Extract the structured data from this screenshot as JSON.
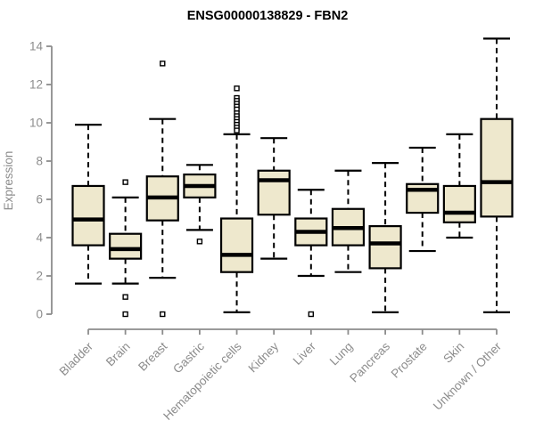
{
  "chart_data": {
    "type": "boxplot",
    "title": "ENSG00000138829 - FBN2",
    "ylabel": "Expression",
    "xlabel": "",
    "ylim": [
      0,
      14
    ],
    "yticks": [
      0,
      2,
      4,
      6,
      8,
      10,
      12,
      14
    ],
    "grid": false,
    "legend": "none",
    "categories": [
      "Bladder",
      "Brain",
      "Breast",
      "Gastric",
      "Hematopoietic cells",
      "Kidney",
      "Liver",
      "Lung",
      "Pancreas",
      "Prostate",
      "Skin",
      "Unknown / Other"
    ],
    "series": [
      {
        "name": "Bladder",
        "low": 1.6,
        "q1": 3.6,
        "median": 4.95,
        "q3": 6.7,
        "high": 9.9,
        "outliers": []
      },
      {
        "name": "Brain",
        "low": 1.6,
        "q1": 2.9,
        "median": 3.4,
        "q3": 4.2,
        "high": 6.1,
        "outliers": [
          6.9,
          0.9,
          0
        ]
      },
      {
        "name": "Breast",
        "low": 1.9,
        "q1": 4.9,
        "median": 6.1,
        "q3": 7.2,
        "high": 10.2,
        "outliers": [
          13.1,
          0
        ]
      },
      {
        "name": "Gastric",
        "low": 4.4,
        "q1": 6.1,
        "median": 6.7,
        "q3": 7.3,
        "high": 7.8,
        "outliers": [
          3.8
        ]
      },
      {
        "name": "Hematopoietic cells",
        "low": 0.1,
        "q1": 2.2,
        "median": 3.1,
        "q3": 5.0,
        "high": 9.4,
        "outliers": [
          11.8,
          11.3,
          11.15,
          11.0,
          10.85,
          10.7,
          10.5,
          10.35,
          10.2,
          10.05,
          9.9,
          9.75,
          9.6
        ]
      },
      {
        "name": "Kidney",
        "low": 2.9,
        "q1": 5.2,
        "median": 7.0,
        "q3": 7.5,
        "high": 9.2,
        "outliers": []
      },
      {
        "name": "Liver",
        "low": 2.0,
        "q1": 3.6,
        "median": 4.3,
        "q3": 5.0,
        "high": 6.5,
        "outliers": [
          0
        ]
      },
      {
        "name": "Lung",
        "low": 2.2,
        "q1": 3.6,
        "median": 4.5,
        "q3": 5.5,
        "high": 7.5,
        "outliers": []
      },
      {
        "name": "Pancreas",
        "low": 0.1,
        "q1": 2.4,
        "median": 3.7,
        "q3": 4.6,
        "high": 7.9,
        "outliers": []
      },
      {
        "name": "Prostate",
        "low": 3.3,
        "q1": 5.3,
        "median": 6.5,
        "q3": 6.8,
        "high": 8.7,
        "outliers": []
      },
      {
        "name": "Skin",
        "low": 4.0,
        "q1": 4.8,
        "median": 5.3,
        "q3": 6.7,
        "high": 9.4,
        "outliers": []
      },
      {
        "name": "Unknown / Other",
        "low": 0.1,
        "q1": 5.1,
        "median": 6.9,
        "q3": 10.2,
        "high": 14.4,
        "outliers": []
      }
    ],
    "colors": {
      "box_fill": "#EEE8CD",
      "box_stroke": "#000000",
      "median": "#000000",
      "whisker": "#000000",
      "axis": "#8C8C8C",
      "tick_label": "#8C8C8C",
      "title": "#000000",
      "background": "#FFFFFF"
    }
  }
}
